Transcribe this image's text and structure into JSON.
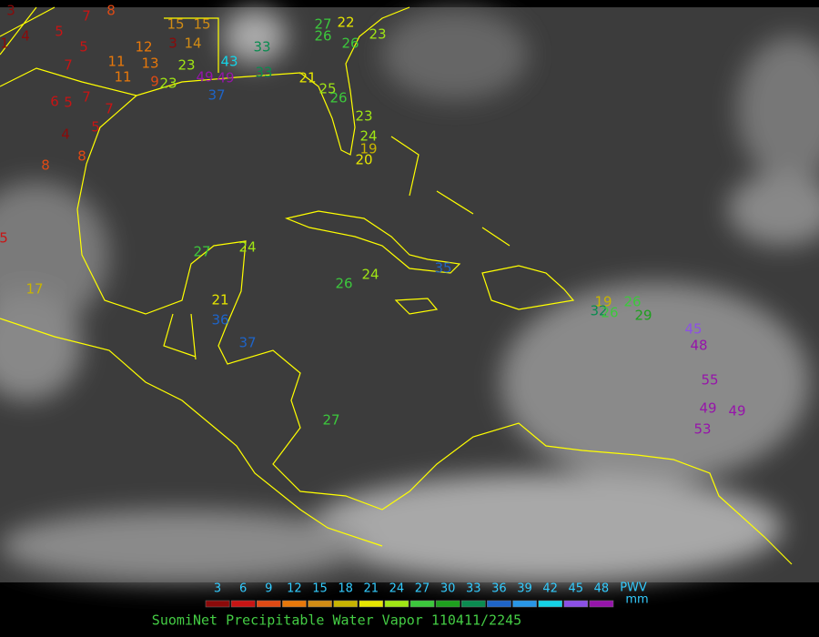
{
  "title": "SuomiNet Precipitable Water Vapor 110411/2245",
  "legend": {
    "label": "PWV",
    "unit": "mm",
    "ticks": [
      3,
      6,
      9,
      12,
      15,
      18,
      21,
      24,
      27,
      30,
      33,
      36,
      39,
      42,
      45,
      48
    ],
    "colors": [
      "#8b0a0a",
      "#c81414",
      "#e04a14",
      "#e8780a",
      "#d28c14",
      "#c8b400",
      "#e6e600",
      "#a0e614",
      "#3cc83c",
      "#1ea01e",
      "#0a8c50",
      "#1e64c8",
      "#2896e6",
      "#14d2e6",
      "#8c50e6",
      "#9614aa"
    ]
  },
  "stations": [
    "3",
    "7",
    "8",
    "5",
    "1",
    "4",
    "5",
    "7",
    "11",
    "12",
    "13",
    "11",
    "9",
    "15",
    "15",
    "3",
    "14",
    "23",
    "23",
    "6",
    "5",
    "7",
    "7",
    "4",
    "5",
    "8",
    "8",
    "5",
    "17",
    "49",
    "49",
    "43",
    "37",
    "33",
    "33",
    "21",
    "27",
    "22",
    "26",
    "26",
    "23",
    "25",
    "26",
    "23",
    "24",
    "19",
    "20",
    "27",
    "24",
    "26",
    "24",
    "35",
    "19",
    "26",
    "32",
    "26",
    "29",
    "45",
    "48",
    "55",
    "49",
    "49",
    "53",
    "37",
    "27",
    "21",
    "36"
  ]
}
